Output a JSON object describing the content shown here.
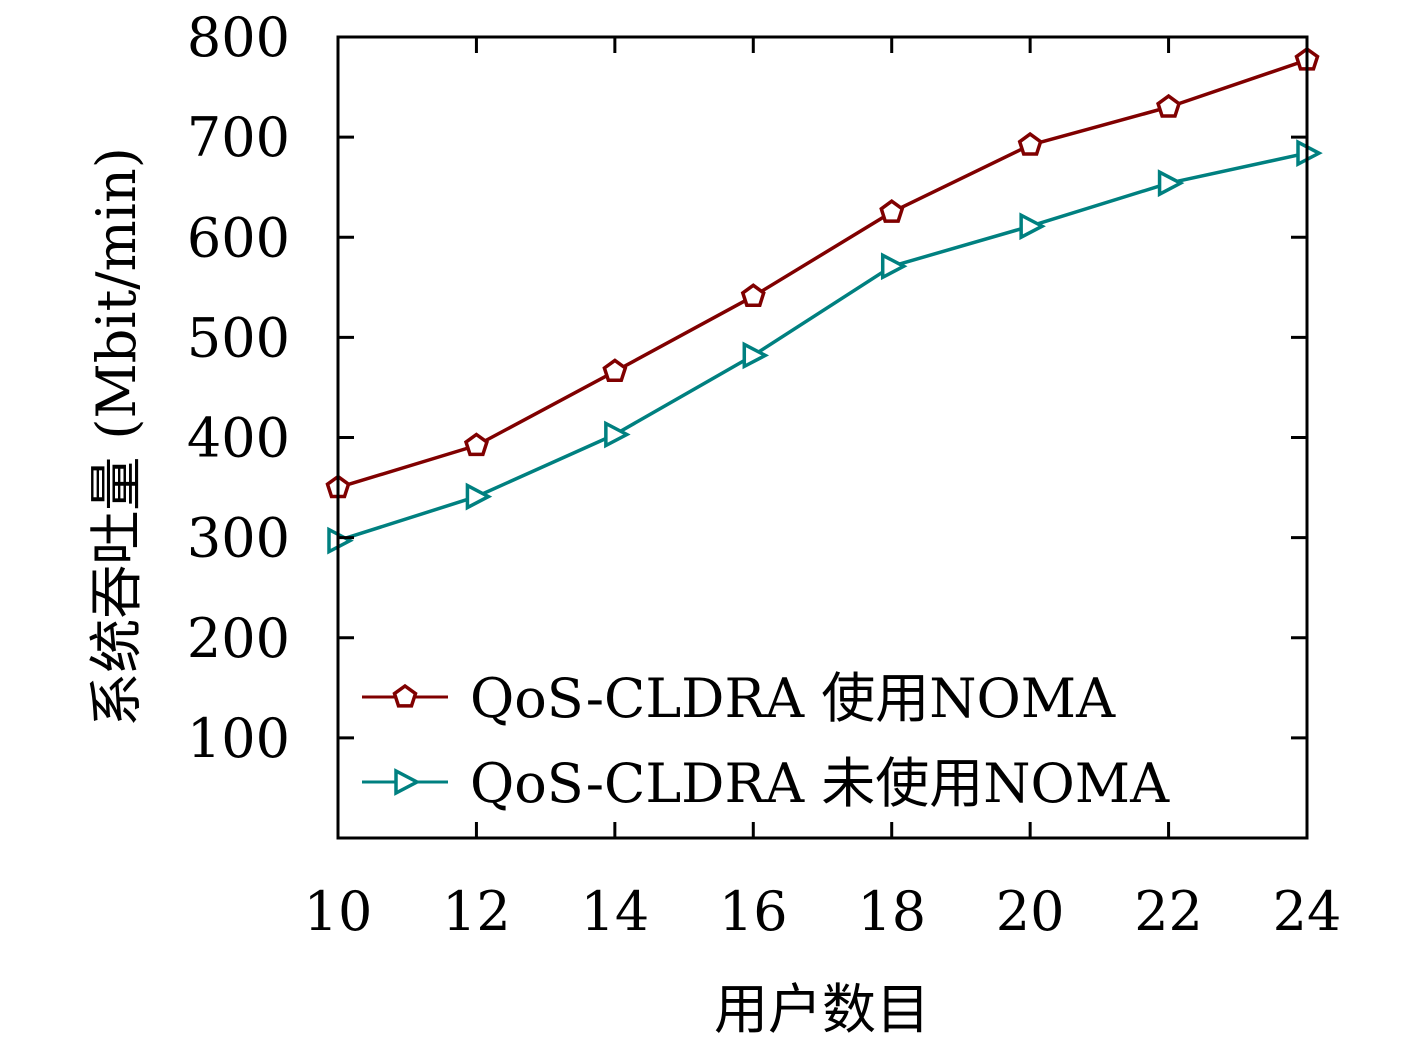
{
  "chart_data": {
    "type": "line",
    "x": [
      10,
      12,
      14,
      16,
      18,
      20,
      22,
      24
    ],
    "xticks": [
      "10",
      "12",
      "14",
      "16",
      "18",
      "20",
      "22",
      "24"
    ],
    "yticks": [
      "100",
      "200",
      "300",
      "400",
      "500",
      "600",
      "700",
      "800"
    ],
    "xlabel": "用户数目",
    "ylabel": "系统吞吐量 (Mbit/min)",
    "xlim": [
      10,
      24
    ],
    "ylim": [
      0,
      800
    ],
    "grid": false,
    "legend_position": "bottom-right",
    "series": [
      {
        "name": "QoS-CLDRA 使用NOMA",
        "color": "#800000",
        "marker": "pentagon",
        "values": [
          350,
          392,
          466,
          541,
          625,
          692,
          730,
          777
        ]
      },
      {
        "name": "QoS-CLDRA 未使用NOMA",
        "color": "#008080",
        "marker": "triangle-right",
        "values": [
          297,
          341,
          403,
          482,
          571,
          611,
          654,
          684
        ]
      }
    ]
  }
}
